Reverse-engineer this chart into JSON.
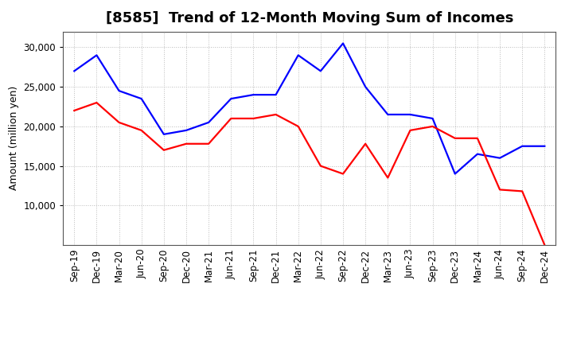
{
  "title": "[8585]  Trend of 12-Month Moving Sum of Incomes",
  "ylabel": "Amount (million yen)",
  "x_labels": [
    "Sep-19",
    "Dec-19",
    "Mar-20",
    "Jun-20",
    "Sep-20",
    "Dec-20",
    "Mar-21",
    "Jun-21",
    "Sep-21",
    "Dec-21",
    "Mar-22",
    "Jun-22",
    "Sep-22",
    "Dec-22",
    "Mar-23",
    "Jun-23",
    "Sep-23",
    "Dec-23",
    "Mar-24",
    "Jun-24",
    "Sep-24",
    "Dec-24"
  ],
  "ordinary_income": [
    27000,
    29000,
    24500,
    23500,
    19000,
    19500,
    20500,
    23500,
    24000,
    24000,
    29000,
    27000,
    30500,
    25000,
    21500,
    21500,
    21000,
    14000,
    16500,
    16000,
    17500,
    17500
  ],
  "net_income": [
    22000,
    23000,
    20500,
    19500,
    17000,
    17800,
    17800,
    21000,
    21000,
    21500,
    20000,
    15000,
    14000,
    17800,
    13500,
    19500,
    20000,
    18500,
    18500,
    12000,
    11800,
    5000
  ],
  "ordinary_color": "#0000ff",
  "net_color": "#ff0000",
  "bg_color": "#ffffff",
  "plot_bg_color": "#ffffff",
  "grid_color": "#aaaaaa",
  "ylim_min": 5000,
  "ylim_max": 32000,
  "yticks": [
    10000,
    15000,
    20000,
    25000,
    30000
  ],
  "title_fontsize": 13,
  "ylabel_fontsize": 9,
  "tick_fontsize": 8.5,
  "legend_fontsize": 9.5,
  "line_width": 1.6
}
